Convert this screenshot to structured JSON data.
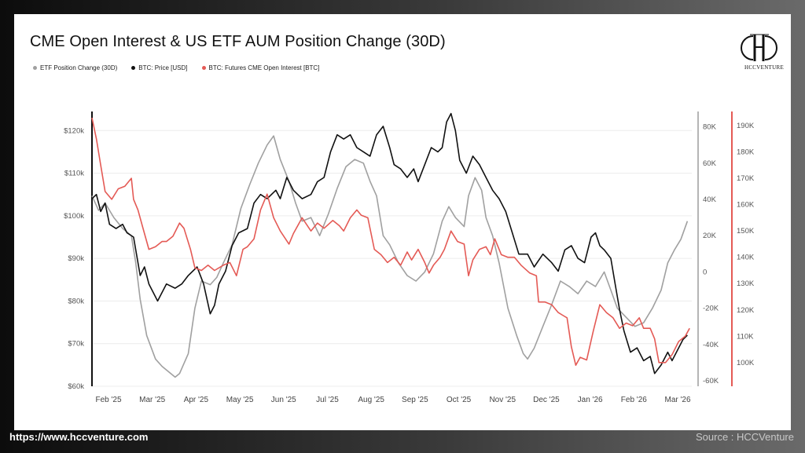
{
  "title": "CME Open Interest & US ETF AUM Position Change (30D)",
  "legend": [
    {
      "label": "ETF Position Change (30D)",
      "color": "#a0a0a0"
    },
    {
      "label": "BTC: Price [USD]",
      "color": "#111111"
    },
    {
      "label": "BTC: Futures CME Open Interest [BTC]",
      "color": "#e45a55"
    }
  ],
  "logo": {
    "icon": "hcc-monogram-icon",
    "text": "HCCVENTURE"
  },
  "footer": {
    "url": "https://www.hccventure.com",
    "source": "Source : HCCVenture"
  },
  "chart_data": {
    "type": "line",
    "title": "CME Open Interest & US ETF AUM Position Change (30D)",
    "x_labels": [
      "Feb '25",
      "Mar '25",
      "Apr '25",
      "May '25",
      "Jun '25",
      "Jul '25",
      "Aug '25",
      "Sep '25",
      "Oct '25",
      "Nov '25",
      "Dec '25",
      "Jan '26",
      "Feb '26",
      "Mar '26"
    ],
    "x_range": [
      0,
      13.7
    ],
    "axes": {
      "left": {
        "ticks": [
          "$60k",
          "$70k",
          "$80k",
          "$90k",
          "$100k",
          "$110k",
          "$120k"
        ],
        "range": [
          60000,
          123000
        ]
      },
      "right1": {
        "ticks": [
          "-60K",
          "-40K",
          "-20K",
          "0",
          "20K",
          "40K",
          "60K",
          "80K"
        ],
        "range": [
          -63000,
          85000
        ]
      },
      "right2": {
        "ticks": [
          "100K",
          "110K",
          "120K",
          "130K",
          "140K",
          "150K",
          "160K",
          "170K",
          "180K",
          "190K"
        ],
        "range": [
          91000,
          193000
        ]
      }
    },
    "grid": true,
    "series": [
      {
        "name": "ETF Position Change (30D)",
        "axis": "right1",
        "color": "#a0a0a0",
        "points": [
          [
            0,
            42000
          ],
          [
            0.15,
            34000
          ],
          [
            0.3,
            38000
          ],
          [
            0.5,
            30000
          ],
          [
            0.7,
            24000
          ],
          [
            0.9,
            20000
          ],
          [
            1.0,
            5000
          ],
          [
            1.1,
            -15000
          ],
          [
            1.25,
            -35000
          ],
          [
            1.45,
            -48000
          ],
          [
            1.6,
            -52000
          ],
          [
            1.8,
            -56000
          ],
          [
            1.9,
            -58000
          ],
          [
            2.0,
            -56000
          ],
          [
            2.2,
            -45000
          ],
          [
            2.35,
            -20000
          ],
          [
            2.5,
            -5000
          ],
          [
            2.7,
            -7000
          ],
          [
            2.85,
            -3000
          ],
          [
            3.0,
            5000
          ],
          [
            3.2,
            15000
          ],
          [
            3.4,
            35000
          ],
          [
            3.6,
            48000
          ],
          [
            3.8,
            60000
          ],
          [
            4.0,
            70000
          ],
          [
            4.15,
            75000
          ],
          [
            4.3,
            62000
          ],
          [
            4.5,
            50000
          ],
          [
            4.65,
            38000
          ],
          [
            4.8,
            28000
          ],
          [
            5.0,
            30000
          ],
          [
            5.2,
            20000
          ],
          [
            5.4,
            32000
          ],
          [
            5.6,
            46000
          ],
          [
            5.8,
            58000
          ],
          [
            6.0,
            62000
          ],
          [
            6.2,
            60000
          ],
          [
            6.35,
            50000
          ],
          [
            6.5,
            42000
          ],
          [
            6.65,
            20000
          ],
          [
            6.8,
            15000
          ],
          [
            7.0,
            5000
          ],
          [
            7.2,
            -2000
          ],
          [
            7.4,
            -5000
          ],
          [
            7.6,
            0
          ],
          [
            7.8,
            10000
          ],
          [
            8.0,
            28000
          ],
          [
            8.15,
            36000
          ],
          [
            8.3,
            30000
          ],
          [
            8.5,
            25000
          ],
          [
            8.6,
            42000
          ],
          [
            8.75,
            52000
          ],
          [
            8.9,
            45000
          ],
          [
            9.0,
            30000
          ],
          [
            9.15,
            20000
          ],
          [
            9.3,
            5000
          ],
          [
            9.5,
            -20000
          ],
          [
            9.7,
            -35000
          ],
          [
            9.85,
            -45000
          ],
          [
            9.95,
            -48000
          ],
          [
            10.1,
            -42000
          ],
          [
            10.3,
            -30000
          ],
          [
            10.5,
            -18000
          ],
          [
            10.7,
            -5000
          ],
          [
            10.9,
            -8000
          ],
          [
            11.1,
            -12000
          ],
          [
            11.3,
            -5000
          ],
          [
            11.5,
            -8000
          ],
          [
            11.7,
            0
          ],
          [
            11.85,
            -10000
          ],
          [
            12.0,
            -20000
          ],
          [
            12.2,
            -25000
          ],
          [
            12.4,
            -30000
          ],
          [
            12.6,
            -28000
          ],
          [
            12.8,
            -20000
          ],
          [
            13.0,
            -10000
          ],
          [
            13.15,
            5000
          ],
          [
            13.3,
            12000
          ],
          [
            13.45,
            18000
          ],
          [
            13.6,
            28000
          ]
        ]
      },
      {
        "name": "BTC: Price [USD]",
        "axis": "left",
        "color": "#111111",
        "points": [
          [
            0,
            104000
          ],
          [
            0.1,
            105000
          ],
          [
            0.2,
            101000
          ],
          [
            0.3,
            103000
          ],
          [
            0.4,
            98000
          ],
          [
            0.55,
            97000
          ],
          [
            0.7,
            98000
          ],
          [
            0.8,
            96000
          ],
          [
            0.95,
            95000
          ],
          [
            1.1,
            86000
          ],
          [
            1.2,
            88000
          ],
          [
            1.3,
            84000
          ],
          [
            1.5,
            80000
          ],
          [
            1.7,
            84000
          ],
          [
            1.9,
            83000
          ],
          [
            2.05,
            84000
          ],
          [
            2.2,
            86000
          ],
          [
            2.4,
            88000
          ],
          [
            2.55,
            84000
          ],
          [
            2.7,
            77000
          ],
          [
            2.8,
            79000
          ],
          [
            2.9,
            84000
          ],
          [
            3.05,
            87000
          ],
          [
            3.2,
            93000
          ],
          [
            3.35,
            96000
          ],
          [
            3.55,
            97000
          ],
          [
            3.7,
            103000
          ],
          [
            3.85,
            105000
          ],
          [
            4.0,
            104000
          ],
          [
            4.2,
            106000
          ],
          [
            4.3,
            104000
          ],
          [
            4.45,
            109000
          ],
          [
            4.6,
            106000
          ],
          [
            4.8,
            104000
          ],
          [
            5.0,
            105000
          ],
          [
            5.15,
            108000
          ],
          [
            5.3,
            109000
          ],
          [
            5.45,
            115000
          ],
          [
            5.6,
            119000
          ],
          [
            5.75,
            118000
          ],
          [
            5.9,
            119000
          ],
          [
            6.05,
            116000
          ],
          [
            6.2,
            115000
          ],
          [
            6.35,
            114000
          ],
          [
            6.5,
            119000
          ],
          [
            6.65,
            121000
          ],
          [
            6.8,
            116000
          ],
          [
            6.9,
            112000
          ],
          [
            7.05,
            111000
          ],
          [
            7.2,
            109000
          ],
          [
            7.35,
            111000
          ],
          [
            7.45,
            108000
          ],
          [
            7.6,
            112000
          ],
          [
            7.75,
            116000
          ],
          [
            7.9,
            115000
          ],
          [
            8.0,
            116000
          ],
          [
            8.1,
            122000
          ],
          [
            8.2,
            124000
          ],
          [
            8.3,
            120000
          ],
          [
            8.4,
            113000
          ],
          [
            8.55,
            110000
          ],
          [
            8.7,
            114000
          ],
          [
            8.85,
            112000
          ],
          [
            9.0,
            109000
          ],
          [
            9.15,
            106000
          ],
          [
            9.3,
            104000
          ],
          [
            9.45,
            101000
          ],
          [
            9.6,
            96000
          ],
          [
            9.75,
            91000
          ],
          [
            9.95,
            91000
          ],
          [
            10.1,
            88000
          ],
          [
            10.3,
            91000
          ],
          [
            10.5,
            89000
          ],
          [
            10.65,
            87000
          ],
          [
            10.8,
            92000
          ],
          [
            10.95,
            93000
          ],
          [
            11.1,
            90000
          ],
          [
            11.25,
            89000
          ],
          [
            11.4,
            95000
          ],
          [
            11.5,
            96000
          ],
          [
            11.6,
            93000
          ],
          [
            11.7,
            92000
          ],
          [
            11.85,
            90000
          ],
          [
            11.95,
            84000
          ],
          [
            12.05,
            78000
          ],
          [
            12.15,
            73000
          ],
          [
            12.3,
            68000
          ],
          [
            12.45,
            69000
          ],
          [
            12.6,
            66000
          ],
          [
            12.75,
            67000
          ],
          [
            12.85,
            63000
          ],
          [
            13.0,
            65000
          ],
          [
            13.15,
            68000
          ],
          [
            13.25,
            66000
          ],
          [
            13.4,
            69000
          ],
          [
            13.5,
            71000
          ],
          [
            13.6,
            72000
          ]
        ]
      },
      {
        "name": "BTC: Futures CME Open Interest [BTC]",
        "axis": "right2",
        "color": "#e45a55",
        "points": [
          [
            0,
            193000
          ],
          [
            0.1,
            185000
          ],
          [
            0.2,
            175000
          ],
          [
            0.3,
            165000
          ],
          [
            0.45,
            162000
          ],
          [
            0.6,
            166000
          ],
          [
            0.75,
            167000
          ],
          [
            0.9,
            170000
          ],
          [
            0.95,
            162000
          ],
          [
            1.05,
            158000
          ],
          [
            1.15,
            152000
          ],
          [
            1.3,
            143000
          ],
          [
            1.45,
            144000
          ],
          [
            1.6,
            146000
          ],
          [
            1.7,
            146000
          ],
          [
            1.85,
            148000
          ],
          [
            2.0,
            153000
          ],
          [
            2.1,
            151000
          ],
          [
            2.25,
            143000
          ],
          [
            2.35,
            136000
          ],
          [
            2.5,
            135000
          ],
          [
            2.65,
            137000
          ],
          [
            2.8,
            135000
          ],
          [
            3.0,
            137000
          ],
          [
            3.15,
            138000
          ],
          [
            3.3,
            133000
          ],
          [
            3.45,
            143000
          ],
          [
            3.55,
            144000
          ],
          [
            3.7,
            147000
          ],
          [
            3.85,
            158000
          ],
          [
            4.0,
            164000
          ],
          [
            4.15,
            155000
          ],
          [
            4.3,
            150000
          ],
          [
            4.5,
            145000
          ],
          [
            4.6,
            149000
          ],
          [
            4.8,
            155000
          ],
          [
            5.0,
            150000
          ],
          [
            5.15,
            153000
          ],
          [
            5.3,
            151000
          ],
          [
            5.5,
            154000
          ],
          [
            5.65,
            152000
          ],
          [
            5.75,
            150000
          ],
          [
            5.9,
            155000
          ],
          [
            6.05,
            158000
          ],
          [
            6.15,
            156000
          ],
          [
            6.3,
            155000
          ],
          [
            6.45,
            143000
          ],
          [
            6.6,
            141000
          ],
          [
            6.75,
            138000
          ],
          [
            6.9,
            140000
          ],
          [
            7.05,
            137000
          ],
          [
            7.2,
            142000
          ],
          [
            7.3,
            139000
          ],
          [
            7.45,
            143000
          ],
          [
            7.6,
            138000
          ],
          [
            7.7,
            134000
          ],
          [
            7.8,
            137000
          ],
          [
            7.95,
            140000
          ],
          [
            8.05,
            143000
          ],
          [
            8.2,
            150000
          ],
          [
            8.35,
            146000
          ],
          [
            8.5,
            145000
          ],
          [
            8.6,
            133000
          ],
          [
            8.7,
            139000
          ],
          [
            8.85,
            143000
          ],
          [
            9.0,
            144000
          ],
          [
            9.1,
            141000
          ],
          [
            9.2,
            147000
          ],
          [
            9.35,
            141000
          ],
          [
            9.5,
            140000
          ],
          [
            9.65,
            140000
          ],
          [
            9.8,
            137000
          ],
          [
            10.0,
            134000
          ],
          [
            10.15,
            133000
          ],
          [
            10.2,
            123000
          ],
          [
            10.35,
            123000
          ],
          [
            10.5,
            122000
          ],
          [
            10.65,
            119000
          ],
          [
            10.75,
            118000
          ],
          [
            10.85,
            117000
          ],
          [
            10.95,
            106000
          ],
          [
            11.05,
            99000
          ],
          [
            11.15,
            102000
          ],
          [
            11.3,
            101000
          ],
          [
            11.45,
            112000
          ],
          [
            11.6,
            122000
          ],
          [
            11.75,
            119000
          ],
          [
            11.9,
            117000
          ],
          [
            12.05,
            113000
          ],
          [
            12.2,
            115000
          ],
          [
            12.35,
            114000
          ],
          [
            12.5,
            117000
          ],
          [
            12.6,
            113000
          ],
          [
            12.75,
            113000
          ],
          [
            12.85,
            109000
          ],
          [
            12.95,
            100000
          ],
          [
            13.1,
            100000
          ],
          [
            13.25,
            103000
          ],
          [
            13.4,
            108000
          ],
          [
            13.55,
            110000
          ],
          [
            13.65,
            113000
          ]
        ]
      }
    ]
  }
}
